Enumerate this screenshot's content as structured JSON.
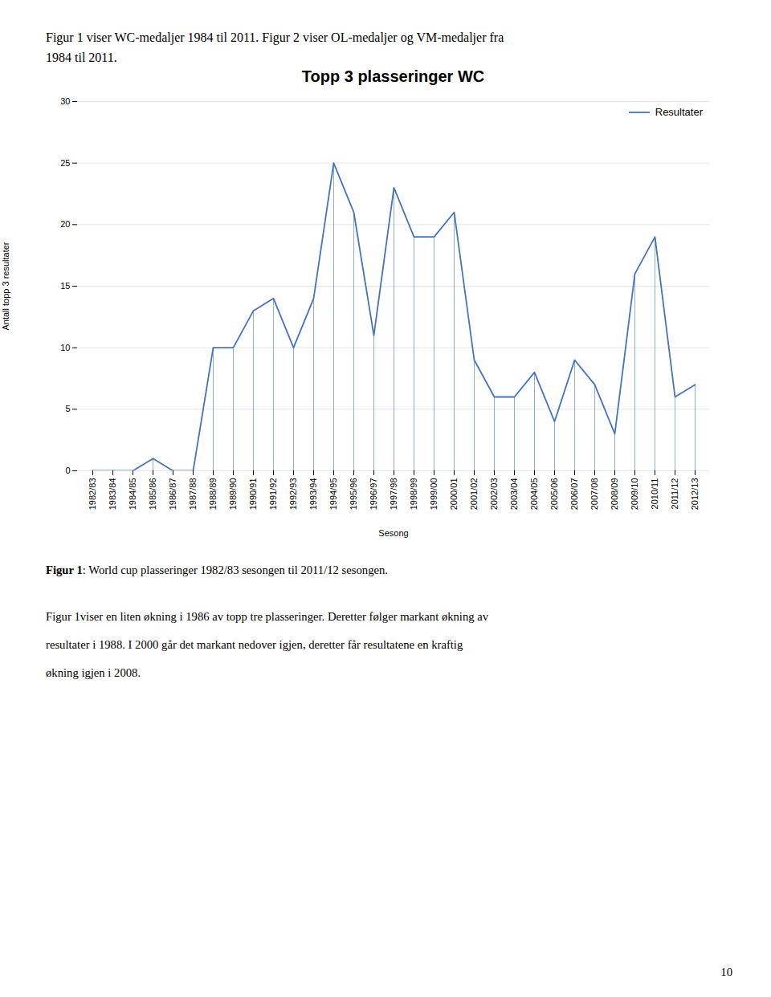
{
  "header": [
    "Figur 1 viser WC-medaljer 1984 til 2011. Figur 2 viser OL-medaljer og VM-medaljer fra",
    "1984 til 2011."
  ],
  "chart_data": {
    "type": "line",
    "title": "Topp 3 plasseringer WC",
    "xlabel": "Sesong",
    "ylabel": "Antall topp 3 resultater",
    "categories": [
      "1982/83",
      "1983/84",
      "1984/85",
      "1985/86",
      "1986/87",
      "1987/88",
      "1988/89",
      "1989/90",
      "1990/91",
      "1991/92",
      "1992/93",
      "1993/94",
      "1994/95",
      "1995/96",
      "1996/97",
      "1997/98",
      "1998/99",
      "1999/00",
      "2000/01",
      "2001/02",
      "2002/03",
      "2003/04",
      "2004/05",
      "2005/06",
      "2006/07",
      "2007/08",
      "2008/09",
      "2009/10",
      "2010/11",
      "2011/12",
      "2012/13"
    ],
    "series": [
      {
        "name": "Resultater",
        "color": "#4472C4",
        "values": [
          0,
          0,
          0,
          1,
          0,
          0,
          10,
          10,
          13,
          14,
          10,
          14,
          25,
          21,
          11,
          23,
          19,
          19,
          21,
          9,
          6,
          6,
          8,
          4,
          9,
          7,
          3,
          16,
          19,
          6,
          7
        ]
      }
    ],
    "ylim": [
      0,
      30
    ],
    "yticks": [
      0,
      5,
      10,
      15,
      20,
      25,
      30
    ],
    "grid": true,
    "legend": "upper right"
  },
  "caption": [
    "Figur 1",
    ": World cup plasseringer 1982/83 sesongen til 2011/12 sesongen."
  ],
  "body": [
    "Figur 1viser en liten økning i 1986 av topp tre plasseringer. Deretter følger markant økning av",
    "resultater i 1988. I 2000 går det markant nedover igjen, deretter får resultatene en kraftig",
    "økning igjen i 2008."
  ],
  "page_number": "10"
}
